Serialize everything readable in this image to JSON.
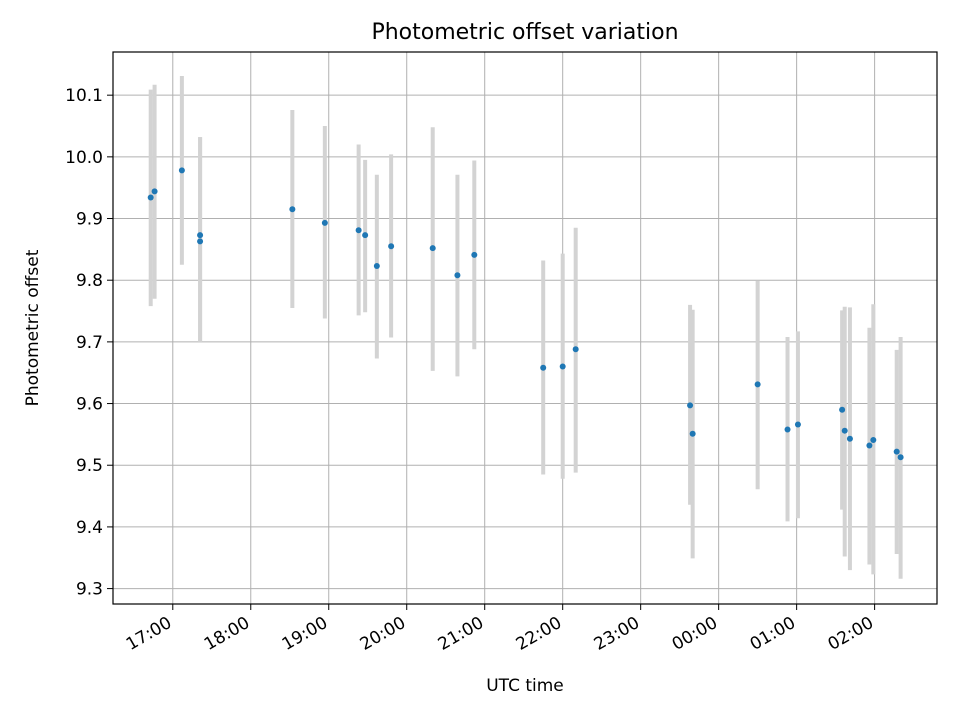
{
  "chart_data": {
    "type": "scatter",
    "title": "Photometric offset variation",
    "xlabel": "UTC time",
    "ylabel": "Photometric offset",
    "x_ticks": [
      "17:00",
      "18:00",
      "19:00",
      "20:00",
      "21:00",
      "22:00",
      "23:00",
      "00:00",
      "01:00",
      "02:00"
    ],
    "y_ticks": [
      "9.3",
      "9.4",
      "9.5",
      "9.6",
      "9.7",
      "9.8",
      "9.9",
      "10.0",
      "10.1"
    ],
    "xlim": [
      "16:14",
      "26:48"
    ],
    "ylim": [
      9.275,
      10.17
    ],
    "grid": true,
    "colors": {
      "point": "#1f77b4",
      "errorbar": "#d3d3d3",
      "grid": "#b0b0b0"
    },
    "points": [
      {
        "x": "16:43",
        "y": 9.934,
        "ymin": 9.758,
        "ymax": 10.109
      },
      {
        "x": "16:46",
        "y": 9.944,
        "ymin": 9.77,
        "ymax": 10.117
      },
      {
        "x": "17:07",
        "y": 9.978,
        "ymin": 9.825,
        "ymax": 10.131
      },
      {
        "x": "17:21",
        "y": 9.873,
        "ymin": 9.7,
        "ymax": 10.032
      },
      {
        "x": "17:21",
        "y": 9.863,
        "ymin": 9.7,
        "ymax": 10.032
      },
      {
        "x": "18:32",
        "y": 9.915,
        "ymin": 9.755,
        "ymax": 10.076
      },
      {
        "x": "18:57",
        "y": 9.893,
        "ymin": 9.738,
        "ymax": 10.05
      },
      {
        "x": "19:23",
        "y": 9.881,
        "ymin": 9.743,
        "ymax": 10.02
      },
      {
        "x": "19:28",
        "y": 9.873,
        "ymin": 9.748,
        "ymax": 9.995
      },
      {
        "x": "19:37",
        "y": 9.823,
        "ymin": 9.673,
        "ymax": 9.971
      },
      {
        "x": "19:48",
        "y": 9.855,
        "ymin": 9.707,
        "ymax": 10.004
      },
      {
        "x": "20:20",
        "y": 9.852,
        "ymin": 9.653,
        "ymax": 10.048
      },
      {
        "x": "20:39",
        "y": 9.808,
        "ymin": 9.644,
        "ymax": 9.971
      },
      {
        "x": "20:52",
        "y": 9.841,
        "ymin": 9.688,
        "ymax": 9.994
      },
      {
        "x": "21:45",
        "y": 9.658,
        "ymin": 9.485,
        "ymax": 9.832
      },
      {
        "x": "22:00",
        "y": 9.66,
        "ymin": 9.478,
        "ymax": 9.843
      },
      {
        "x": "22:10",
        "y": 9.688,
        "ymin": 9.488,
        "ymax": 9.885
      },
      {
        "x": "23:38",
        "y": 9.597,
        "ymin": 9.436,
        "ymax": 9.76
      },
      {
        "x": "23:40",
        "y": 9.551,
        "ymin": 9.349,
        "ymax": 9.752
      },
      {
        "x": "24:30",
        "y": 9.631,
        "ymin": 9.461,
        "ymax": 9.799
      },
      {
        "x": "24:53",
        "y": 9.558,
        "ymin": 9.409,
        "ymax": 9.708
      },
      {
        "x": "25:01",
        "y": 9.566,
        "ymin": 9.414,
        "ymax": 9.717
      },
      {
        "x": "25:35",
        "y": 9.59,
        "ymin": 9.428,
        "ymax": 9.751
      },
      {
        "x": "25:37",
        "y": 9.556,
        "ymin": 9.352,
        "ymax": 9.757
      },
      {
        "x": "25:41",
        "y": 9.543,
        "ymin": 9.33,
        "ymax": 9.756
      },
      {
        "x": "25:56",
        "y": 9.532,
        "ymin": 9.339,
        "ymax": 9.723
      },
      {
        "x": "25:59",
        "y": 9.541,
        "ymin": 9.323,
        "ymax": 9.761
      },
      {
        "x": "26:17",
        "y": 9.522,
        "ymin": 9.356,
        "ymax": 9.687
      },
      {
        "x": "26:20",
        "y": 9.513,
        "ymin": 9.316,
        "ymax": 9.708
      }
    ]
  }
}
